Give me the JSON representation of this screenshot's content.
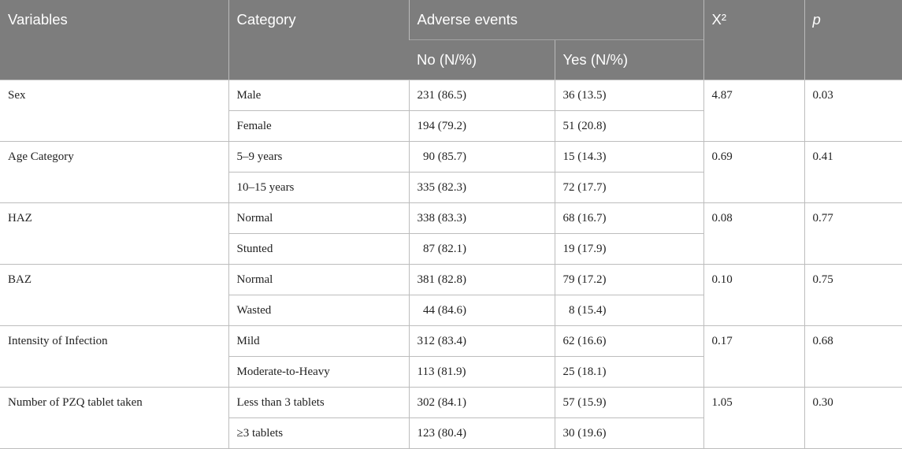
{
  "header": {
    "variables": "Variables",
    "category": "Category",
    "adverse_events": "Adverse events",
    "no": "No (N/%)",
    "yes": "Yes (N/%)",
    "chi_square": "X²",
    "p": "p"
  },
  "groups": [
    {
      "variable": "Sex",
      "chi2": "4.87",
      "p": "0.03",
      "rows": [
        {
          "category": "Male",
          "no": "231 (86.5)",
          "yes": "36 (13.5)"
        },
        {
          "category": "Female",
          "no": "194 (79.2)",
          "yes": "51 (20.8)"
        }
      ]
    },
    {
      "variable": "Age Category",
      "chi2": "0.69",
      "p": "0.41",
      "rows": [
        {
          "category": "5–9 years",
          "no": "  90 (85.7)",
          "yes": "15 (14.3)"
        },
        {
          "category": "10–15 years",
          "no": "335 (82.3)",
          "yes": "72 (17.7)"
        }
      ]
    },
    {
      "variable": "HAZ",
      "chi2": "0.08",
      "p": "0.77",
      "rows": [
        {
          "category": "Normal",
          "no": "338 (83.3)",
          "yes": "68 (16.7)"
        },
        {
          "category": "Stunted",
          "no": "  87 (82.1)",
          "yes": "19 (17.9)"
        }
      ]
    },
    {
      "variable": "BAZ",
      "chi2": "0.10",
      "p": "0.75",
      "rows": [
        {
          "category": "Normal",
          "no": "381 (82.8)",
          "yes": "79 (17.2)"
        },
        {
          "category": "Wasted",
          "no": "  44 (84.6)",
          "yes": "  8 (15.4)"
        }
      ]
    },
    {
      "variable": "Intensity of Infection",
      "chi2": "0.17",
      "p": "0.68",
      "rows": [
        {
          "category": "Mild",
          "no": "312 (83.4)",
          "yes": "62 (16.6)"
        },
        {
          "category": "Moderate-to-Heavy",
          "no": "113 (81.9)",
          "yes": "25 (18.1)"
        }
      ]
    },
    {
      "variable": "Number of PZQ tablet taken",
      "chi2": "1.05",
      "p": "0.30",
      "rows": [
        {
          "category": "Less than 3 tablets",
          "no": "302 (84.1)",
          "yes": "57 (15.9)"
        },
        {
          "category": "≥3 tablets",
          "no": "123 (80.4)",
          "yes": "30 (19.6)"
        }
      ]
    }
  ]
}
